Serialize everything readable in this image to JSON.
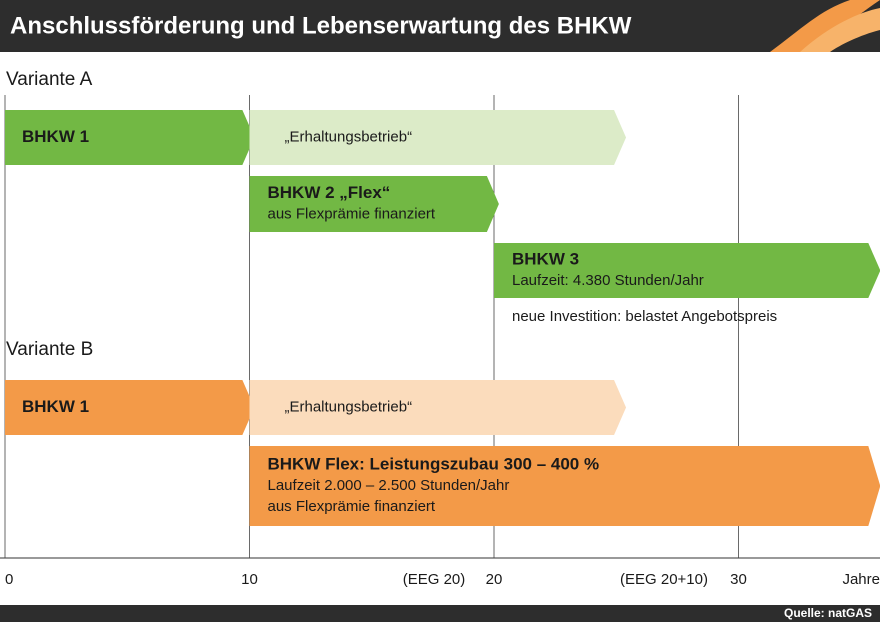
{
  "title": "Anschlussförderung und Lebenserwartung des BHKW",
  "xlim": [
    0,
    35.8
  ],
  "xticks": [
    0,
    10,
    20,
    30
  ],
  "axis_label": "Jahre",
  "axis_notes": [
    "(EEG 20)",
    "(EEG 20+10)"
  ],
  "source": "Quelle: natGAS",
  "groups": [
    {
      "label": "Variante A",
      "bars": [
        {
          "lines": [
            "BHKW 1"
          ],
          "start": 0,
          "end": 10.2,
          "color": "#72b844"
        },
        {
          "lines": [
            "„Erhaltungsbetrieb“"
          ],
          "start": 10,
          "end": 25.4,
          "color": "#dcebc8"
        },
        {
          "lines": [
            "BHKW 2 „Flex“",
            "aus Flexprämie finanziert"
          ],
          "start": 10,
          "end": 20.2,
          "color": "#72b844"
        },
        {
          "lines": [
            "BHKW 3",
            "Laufzeit: 4.380 Stunden/Jahr"
          ],
          "start": 20,
          "end": 35.8,
          "color": "#72b844",
          "note": "neue Investition: belastet Angebotspreis"
        }
      ]
    },
    {
      "label": "Variante B",
      "bars": [
        {
          "lines": [
            "BHKW 1"
          ],
          "start": 0,
          "end": 10.2,
          "color": "#f39a48"
        },
        {
          "lines": [
            "„Erhaltungsbetrieb“"
          ],
          "start": 10,
          "end": 25.4,
          "color": "#fbdcbc"
        },
        {
          "lines": [
            "BHKW Flex: Leistungszubau 300 – 400 %",
            "Laufzeit 2.000 – 2.500 Stunden/Jahr",
            "aus Flexprämie finanziert"
          ],
          "start": 10,
          "end": 35.8,
          "color": "#f39a48"
        }
      ]
    }
  ]
}
